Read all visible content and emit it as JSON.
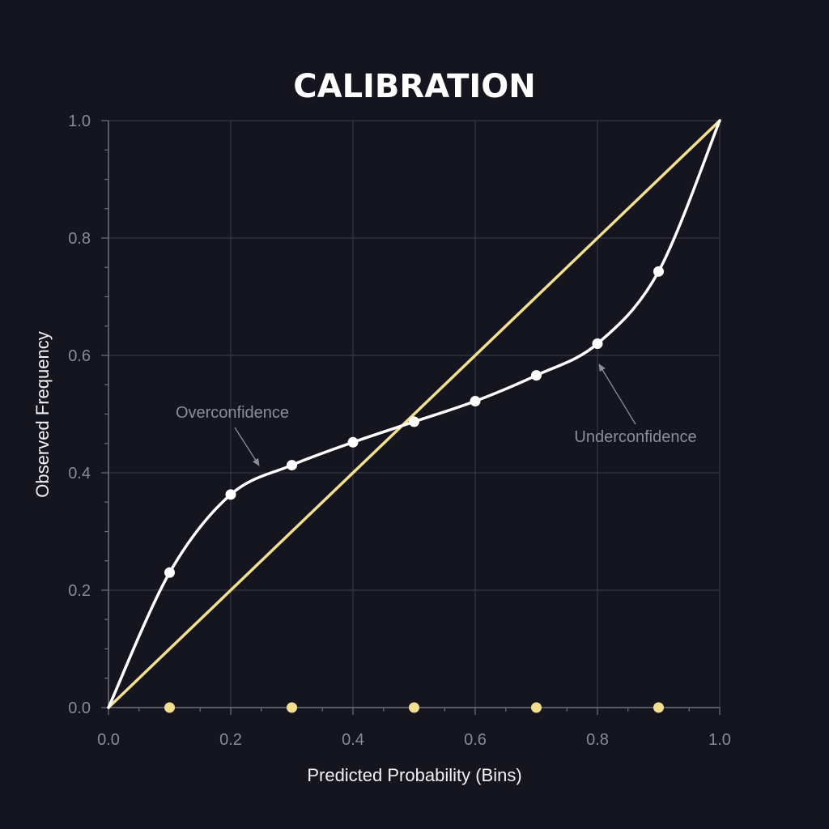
{
  "chart_data": {
    "type": "line",
    "title": "CALIBRATION",
    "xlabel": "Predicted Probability (Bins)",
    "ylabel": "Observed Frequency",
    "xlim": [
      0,
      1
    ],
    "ylim": [
      0,
      1
    ],
    "x_ticks": [
      "0.0",
      "0.2",
      "0.4",
      "0.6",
      "0.8",
      "1.0"
    ],
    "y_ticks": [
      "0.0",
      "0.2",
      "0.4",
      "0.6",
      "0.8",
      "1.0"
    ],
    "grid": true,
    "reference_line": {
      "x": [
        0,
        1
      ],
      "y": [
        0,
        1
      ],
      "color": "#f3df8f"
    },
    "series": [
      {
        "x": [
          0.0,
          0.1,
          0.2,
          0.3,
          0.4,
          0.5,
          0.6,
          0.7,
          0.8,
          0.9,
          1.0
        ],
        "y": [
          0.0,
          0.23,
          0.363,
          0.413,
          0.452,
          0.487,
          0.522,
          0.566,
          0.62,
          0.743,
          1.0
        ],
        "marker_indices": [
          1,
          2,
          3,
          4,
          5,
          6,
          7,
          8,
          9
        ],
        "color": "#ffffff"
      }
    ],
    "bin_markers": {
      "x": [
        0.1,
        0.3,
        0.5,
        0.7,
        0.9
      ],
      "y": [
        0,
        0,
        0,
        0,
        0
      ],
      "color": "#f3df8f"
    },
    "annotations": [
      {
        "text": "Overconfidence",
        "target": [
          0.25,
          0.42
        ]
      },
      {
        "text": "Underconfidence",
        "target": [
          0.8,
          0.59
        ]
      }
    ],
    "colors": {
      "background": "#15151f",
      "grid": "#363648",
      "axis": "#6e6e7e",
      "tick_label": "#8a8a98"
    }
  }
}
